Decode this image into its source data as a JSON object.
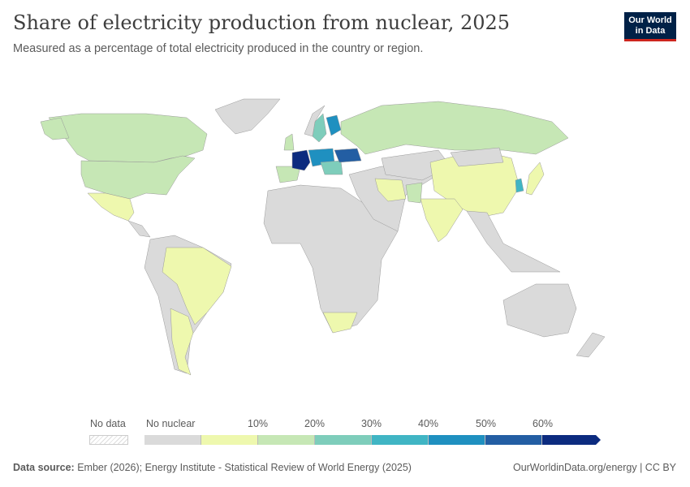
{
  "header": {
    "title": "Share of electricity production from nuclear, 2025",
    "subtitle": "Measured as a percentage of total electricity produced in the country or region.",
    "logo": "Our World in Data"
  },
  "legend": {
    "no_data": "No data",
    "no_nuclear": "No nuclear",
    "ticks": [
      "10%",
      "20%",
      "30%",
      "40%",
      "50%",
      "60%"
    ],
    "colors": {
      "no_data": "#ffffff",
      "no_nuclear": "#dadada",
      "0-10": "#eef8ae",
      "10-20": "#c6e7b5",
      "20-30": "#7ecdbb",
      "30-40": "#40b5c4",
      "40-50": "#1f90c0",
      "50-60": "#235ea3",
      "60+": "#0c2b7f"
    }
  },
  "footer": {
    "source_label": "Data source:",
    "source": "Ember (2026); Energy Institute - Statistical Review of World Energy (2025)",
    "url": "OurWorldinData.org/energy",
    "license": "CC BY"
  }
}
